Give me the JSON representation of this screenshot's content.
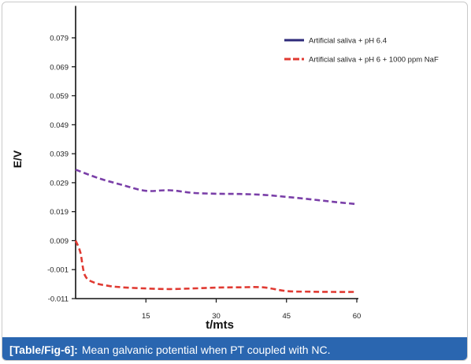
{
  "chart_data": {
    "type": "line",
    "title": "",
    "xlabel": "t/mts",
    "ylabel": "E/V",
    "xlim": [
      0,
      60
    ],
    "ylim": [
      -0.011,
      0.09
    ],
    "x_ticks": [
      15,
      30,
      45,
      60
    ],
    "y_ticks": [
      0.079,
      0.069,
      0.059,
      0.049,
      0.039,
      0.029,
      0.019,
      0.009,
      -0.001,
      -0.011
    ],
    "y_tick_labels": [
      "0.079",
      "0.069",
      "0.059",
      "0.049",
      "0.039",
      "0.029",
      "0.019",
      "0.009",
      "-0.001",
      "-0.011"
    ],
    "grid": false,
    "legend_position": "top-right",
    "series": [
      {
        "name": "Artificial saliva + pH 6.4",
        "legend_color": "#2e2a7a",
        "color": "#7a3fa8",
        "style": "dashed",
        "x": [
          0,
          5,
          10,
          15,
          20,
          25,
          30,
          35,
          40,
          45,
          50,
          55,
          60
        ],
        "y": [
          0.0335,
          0.0305,
          0.0282,
          0.0262,
          0.0264,
          0.0255,
          0.0252,
          0.0251,
          0.0248,
          0.0241,
          0.0233,
          0.0224,
          0.0216
        ]
      },
      {
        "name": "Artificial saliva + pH 6 + 1000 ppm NaF",
        "legend_color": "#e03a32",
        "color": "#e03a32",
        "style": "dashed",
        "x": [
          0,
          1,
          2,
          4,
          7,
          10,
          15,
          20,
          25,
          30,
          35,
          40,
          45,
          50,
          55,
          60
        ],
        "y": [
          0.009,
          0.005,
          -0.003,
          -0.0055,
          -0.0066,
          -0.0071,
          -0.0075,
          -0.0077,
          -0.0075,
          -0.0072,
          -0.0071,
          -0.0071,
          -0.0084,
          -0.0086,
          -0.0087,
          -0.0087
        ]
      }
    ]
  },
  "caption": {
    "ref": "[Table/Fig-6]:",
    "text": "Mean galvanic potential when PT coupled with NC."
  }
}
